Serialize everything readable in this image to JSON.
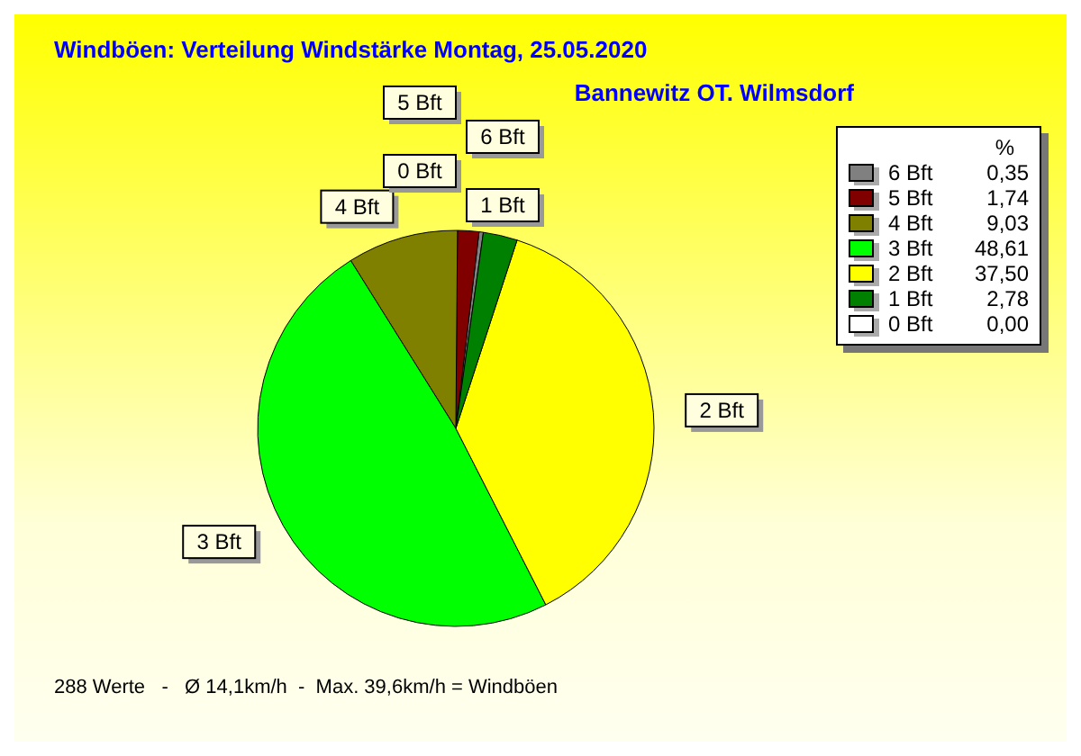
{
  "chart_data": {
    "type": "pie",
    "title": "Windböen: Verteilung Windstärke  Montag, 25.05.2020",
    "subtitle": "Bannewitz OT. Wilmsdorf",
    "legend_title": "%",
    "categories": [
      "6 Bft",
      "5 Bft",
      "4 Bft",
      "3 Bft",
      "2 Bft",
      "1 Bft",
      "0 Bft"
    ],
    "values": [
      0.35,
      1.74,
      9.03,
      48.61,
      37.5,
      2.78,
      0.0
    ],
    "value_labels": [
      "0,35",
      "1,74",
      "9,03",
      "48,61",
      "37,50",
      "2,78",
      "0,00"
    ],
    "colors": [
      "#808080",
      "#800000",
      "#808000",
      "#00ff00",
      "#ffff00",
      "#008000",
      "#ffffff"
    ],
    "legend": "top right",
    "annotations": [
      "288 Werte   -   Ø 14,1km/h  -  Max. 39,6km/h = Windböen"
    ]
  }
}
